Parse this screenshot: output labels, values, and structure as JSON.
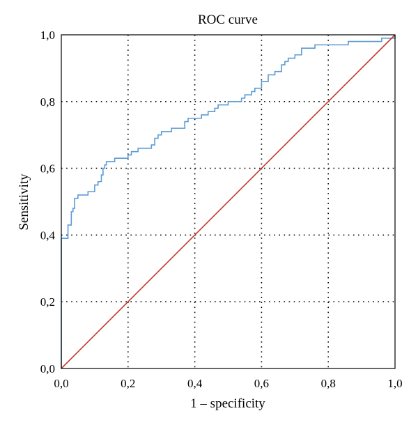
{
  "chart_data": {
    "type": "line",
    "title": "ROC curve",
    "xlabel": "1 – specificity",
    "ylabel": "Sensitivity",
    "xlim": [
      0,
      1
    ],
    "ylim": [
      0,
      1
    ],
    "x_ticks": [
      "0,0",
      "0,2",
      "0,4",
      "0,6",
      "0,8",
      "1,0"
    ],
    "y_ticks": [
      "0,0",
      "0,2",
      "0,4",
      "0,6",
      "0,8",
      "1,0"
    ],
    "grid": true,
    "series": [
      {
        "color": "#5b9bd5",
        "step": true,
        "x": [
          0.0,
          0.0,
          0.01,
          0.02,
          0.025,
          0.03,
          0.035,
          0.04,
          0.05,
          0.06,
          0.07,
          0.08,
          0.09,
          0.1,
          0.11,
          0.12,
          0.125,
          0.13,
          0.135,
          0.14,
          0.15,
          0.16,
          0.17,
          0.18,
          0.2,
          0.21,
          0.22,
          0.23,
          0.24,
          0.25,
          0.27,
          0.28,
          0.29,
          0.3,
          0.33,
          0.35,
          0.37,
          0.38,
          0.39,
          0.4,
          0.41,
          0.42,
          0.43,
          0.44,
          0.46,
          0.47,
          0.5,
          0.53,
          0.54,
          0.55,
          0.56,
          0.57,
          0.58,
          0.6,
          0.62,
          0.64,
          0.65,
          0.66,
          0.67,
          0.68,
          0.69,
          0.7,
          0.72,
          0.76,
          0.78,
          0.8,
          0.82,
          0.84,
          0.86,
          0.92,
          0.96,
          1.0
        ],
        "y": [
          0.0,
          0.39,
          0.39,
          0.43,
          0.43,
          0.47,
          0.48,
          0.51,
          0.52,
          0.52,
          0.52,
          0.53,
          0.53,
          0.55,
          0.56,
          0.58,
          0.6,
          0.61,
          0.62,
          0.62,
          0.62,
          0.63,
          0.63,
          0.63,
          0.64,
          0.65,
          0.65,
          0.66,
          0.66,
          0.66,
          0.67,
          0.69,
          0.7,
          0.71,
          0.72,
          0.72,
          0.74,
          0.75,
          0.75,
          0.75,
          0.75,
          0.76,
          0.76,
          0.77,
          0.78,
          0.79,
          0.8,
          0.8,
          0.81,
          0.82,
          0.82,
          0.83,
          0.84,
          0.86,
          0.88,
          0.89,
          0.89,
          0.91,
          0.92,
          0.93,
          0.93,
          0.94,
          0.96,
          0.97,
          0.97,
          0.97,
          0.97,
          0.97,
          0.98,
          0.98,
          0.99,
          1.0
        ]
      },
      {
        "color": "#c0392b",
        "step": false,
        "x": [
          0,
          1
        ],
        "y": [
          0,
          1
        ]
      }
    ]
  }
}
